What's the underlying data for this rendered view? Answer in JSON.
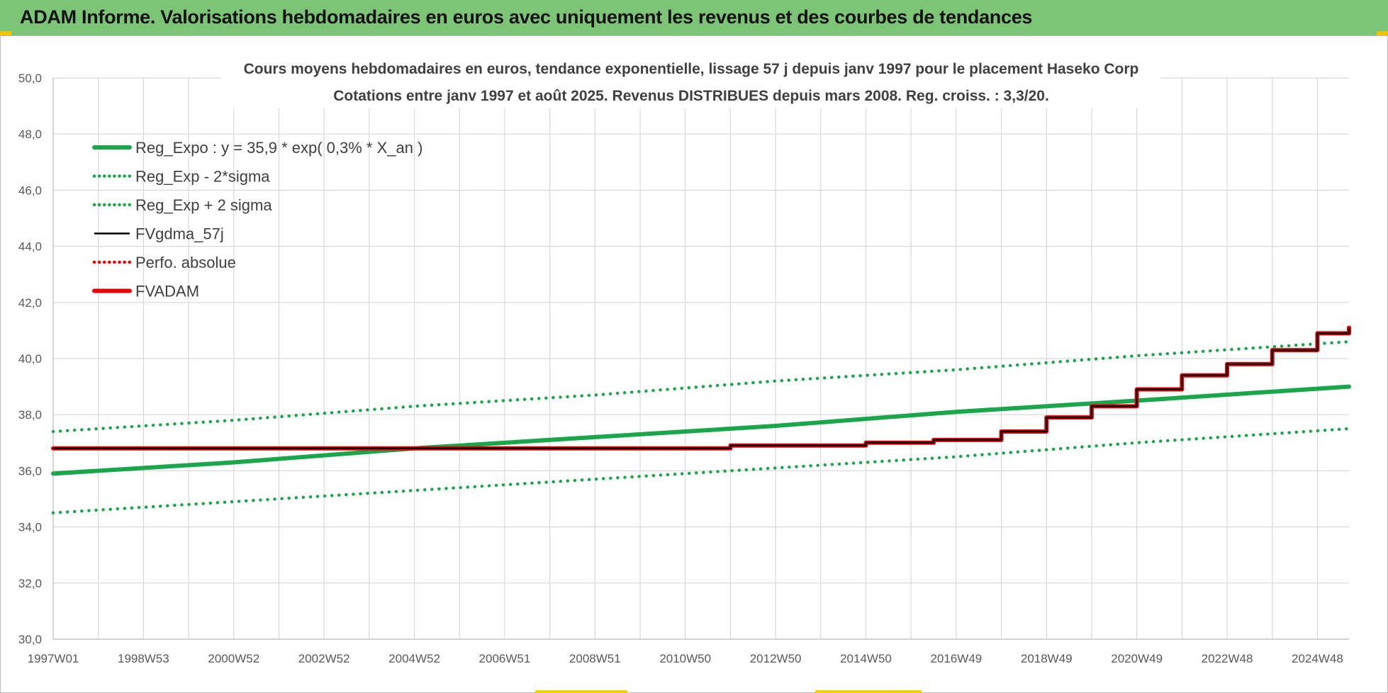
{
  "banner": {
    "title": "ADAM Informe. Valorisations hebdomadaires en euros avec uniquement les revenus et des courbes de tendances"
  },
  "colors": {
    "banner_bg": "#7cc576",
    "reg_green": "#1aa64a",
    "adam_red": "#ee0000",
    "gdma_black": "#000000",
    "grid": "#d9d9d9"
  },
  "chart_data": {
    "type": "line",
    "title_lines": [
      "Cours moyens hebdomadaires en euros, tendance exponentielle, lissage 57 j depuis janv 1997  pour le placement Haseko Corp",
      "Cotations entre janv 1997 et août 2025.  Revenus DISTRIBUES depuis mars 2008. Reg. croiss. : 3,3/20."
    ],
    "xlabel": "",
    "ylabel": "",
    "x_tick_labels": [
      "1997W01",
      "1998W53",
      "2000W52",
      "2002W52",
      "2004W52",
      "2006W51",
      "2008W51",
      "2010W50",
      "2012W50",
      "2014W50",
      "2016W49",
      "2018W49",
      "2020W49",
      "2022W48",
      "2024W48"
    ],
    "x_tick_years": [
      1997.0,
      1999.0,
      2001.0,
      2003.0,
      2005.0,
      2007.0,
      2009.0,
      2011.0,
      2013.0,
      2015.0,
      2017.0,
      2019.0,
      2021.0,
      2023.0,
      2025.0
    ],
    "x_range": [
      1997.0,
      2025.7
    ],
    "ylim": [
      30.0,
      50.0
    ],
    "y_tick_labels": [
      "30,0",
      "32,0",
      "34,0",
      "36,0",
      "38,0",
      "40,0",
      "42,0",
      "44,0",
      "46,0",
      "48,0",
      "50,0"
    ],
    "y_tick_values": [
      30,
      32,
      34,
      36,
      38,
      40,
      42,
      44,
      46,
      48,
      50
    ],
    "grid": true,
    "legend_position": "top-left",
    "series": [
      {
        "name": "Reg_Expo : y = 35,9 * exp( 0,3% *  X_an )",
        "style": "solid-thick",
        "color": "#1aa64a",
        "x": [
          1997.0,
          2001.0,
          2005.0,
          2009.0,
          2013.0,
          2017.0,
          2021.0,
          2025.7
        ],
        "y": [
          35.9,
          36.3,
          36.8,
          37.2,
          37.6,
          38.1,
          38.5,
          39.0
        ]
      },
      {
        "name": "Reg_Exp - 2*sigma",
        "style": "dotted",
        "color": "#1aa64a",
        "x": [
          1997.0,
          2001.0,
          2005.0,
          2009.0,
          2013.0,
          2017.0,
          2021.0,
          2025.7
        ],
        "y": [
          34.5,
          34.9,
          35.3,
          35.7,
          36.1,
          36.5,
          37.0,
          37.5
        ]
      },
      {
        "name": "Reg_Exp + 2 sigma",
        "style": "dotted",
        "color": "#1aa64a",
        "x": [
          1997.0,
          2001.0,
          2005.0,
          2009.0,
          2013.0,
          2017.0,
          2021.0,
          2025.7
        ],
        "y": [
          37.4,
          37.8,
          38.3,
          38.7,
          39.2,
          39.6,
          40.1,
          40.6
        ]
      },
      {
        "name": "FVgdma_57j",
        "style": "solid",
        "color": "#000000",
        "x": [
          1997.0,
          2008.2,
          2012.0,
          2015.0,
          2016.5,
          2018.0,
          2019.0,
          2020.0,
          2021.0,
          2022.0,
          2023.0,
          2024.0,
          2025.0,
          2025.7
        ],
        "y": [
          36.8,
          36.8,
          36.9,
          37.0,
          37.1,
          37.4,
          37.9,
          38.3,
          38.9,
          39.4,
          39.8,
          40.3,
          40.9,
          41.1
        ]
      },
      {
        "name": "Perfo. absolue",
        "style": "dotted",
        "color": "#ee0000",
        "x": [],
        "y": []
      },
      {
        "name": "FVADAM",
        "style": "solid-thick",
        "color": "#ee0000",
        "x": [
          1997.0,
          2008.2,
          2012.0,
          2015.0,
          2016.5,
          2018.0,
          2019.0,
          2020.0,
          2021.0,
          2022.0,
          2023.0,
          2024.0,
          2025.0,
          2025.7
        ],
        "y": [
          36.8,
          36.8,
          36.9,
          37.0,
          37.1,
          37.4,
          37.9,
          38.3,
          38.9,
          39.4,
          39.8,
          40.3,
          40.9,
          41.1
        ]
      }
    ]
  }
}
